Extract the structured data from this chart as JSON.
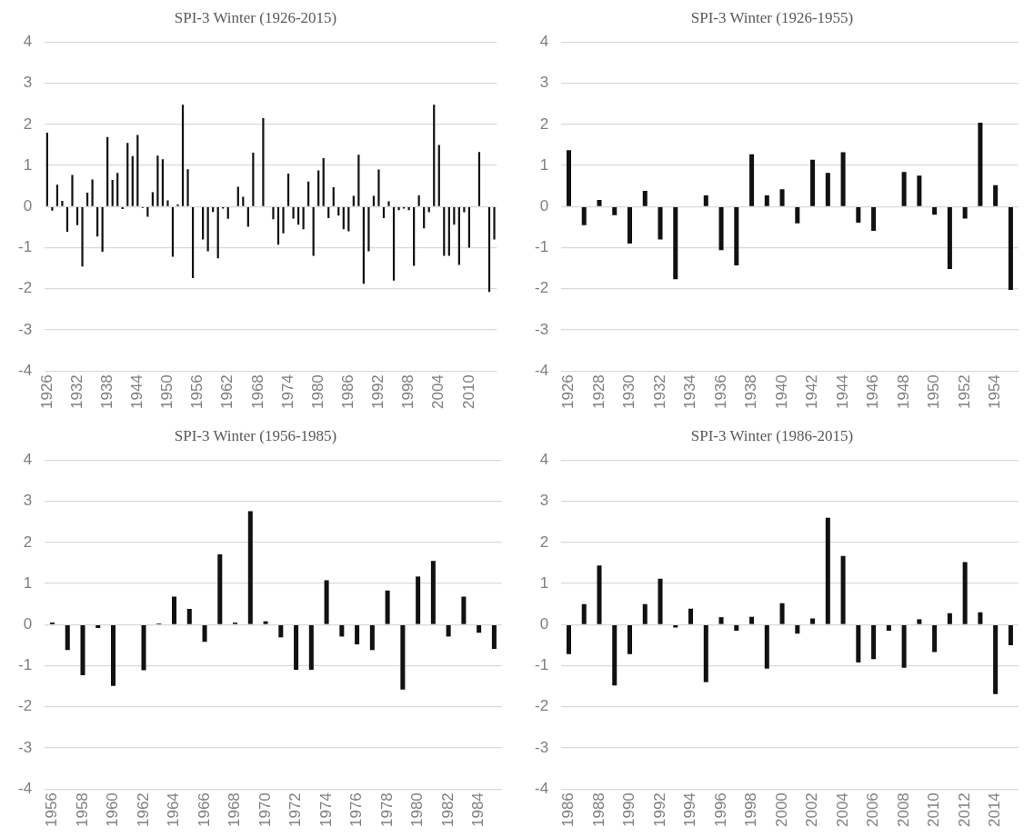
{
  "chart_data": [
    {
      "type": "bar",
      "title": "SPI-3 Winter (1926-2015)",
      "color": "#111111",
      "ylim": [
        -4,
        4
      ],
      "yticks": [
        -4,
        -3,
        -2,
        -1,
        0,
        1,
        2,
        3,
        4
      ],
      "grid": "y",
      "categories": [
        "1926",
        null,
        null,
        null,
        null,
        null,
        "1932",
        null,
        null,
        null,
        null,
        null,
        "1938",
        null,
        null,
        null,
        null,
        null,
        "1944",
        null,
        null,
        null,
        null,
        null,
        "1950",
        null,
        null,
        null,
        null,
        null,
        "1956",
        null,
        null,
        null,
        null,
        null,
        "1962",
        null,
        null,
        null,
        null,
        null,
        "1968",
        null,
        null,
        null,
        null,
        null,
        "1974",
        null,
        null,
        null,
        null,
        null,
        "1980",
        null,
        null,
        null,
        null,
        null,
        "1986",
        null,
        null,
        null,
        null,
        null,
        "1992",
        null,
        null,
        null,
        null,
        null,
        "1998",
        null,
        null,
        null,
        null,
        null,
        "2004",
        null,
        null,
        null,
        null,
        null,
        "2010",
        null,
        null,
        null,
        null,
        null
      ],
      "values": [
        1.8,
        -0.1,
        0.53,
        0.14,
        -0.61,
        0.77,
        -0.45,
        -1.46,
        0.34,
        0.66,
        -0.73,
        -1.1,
        1.69,
        0.65,
        0.82,
        -0.06,
        1.55,
        1.23,
        1.74,
        -0.03,
        -0.25,
        0.35,
        1.24,
        1.15,
        0.15,
        -1.22,
        0.05,
        2.48,
        0.91,
        -1.74,
        null,
        -0.8,
        -1.09,
        -0.13,
        -1.26,
        -0.05,
        -0.3,
        null,
        0.48,
        0.24,
        -0.49,
        1.31,
        null,
        2.15,
        null,
        -0.31,
        -0.93,
        -0.65,
        0.8,
        -0.29,
        -0.44,
        -0.55,
        0.61,
        -1.2,
        0.88,
        1.18,
        -0.28,
        0.47,
        -0.22,
        -0.55,
        -0.6,
        0.26,
        1.26,
        -1.88,
        -1.09,
        0.26,
        0.9,
        -0.28,
        0.13,
        -1.8,
        -0.09,
        -0.05,
        -0.09,
        -1.44,
        0.27,
        -0.53,
        -0.14,
        2.48,
        1.5,
        -1.2,
        -1.2,
        -0.44,
        -1.42,
        -0.14,
        -1.0,
        null,
        1.33,
        null,
        -2.08,
        -0.8
      ]
    },
    {
      "type": "bar",
      "title": "SPI-3 Winter (1926-1955)",
      "color": "#111111",
      "ylim": [
        -4,
        4
      ],
      "yticks": [
        -4,
        -3,
        -2,
        -1,
        0,
        1,
        2,
        3,
        4
      ],
      "grid": "y",
      "categories": [
        "1926",
        null,
        "1928",
        null,
        "1930",
        null,
        "1932",
        null,
        "1934",
        null,
        "1936",
        null,
        "1938",
        null,
        "1940",
        null,
        "1942",
        null,
        "1944",
        null,
        "1946",
        null,
        "1948",
        null,
        "1950",
        null,
        "1952",
        null,
        "1954",
        null
      ],
      "values": [
        1.37,
        -0.45,
        0.16,
        -0.21,
        -0.9,
        0.38,
        -0.8,
        -1.77,
        0,
        0.27,
        -1.06,
        -1.43,
        1.27,
        0.27,
        0.42,
        -0.41,
        1.14,
        0.82,
        1.32,
        -0.39,
        -0.59,
        0,
        0.84,
        0.75,
        -0.2,
        -1.52,
        -0.29,
        2.04,
        0.52,
        -2.03
      ]
    },
    {
      "type": "bar",
      "title": "SPI-3 Winter (1956-1985)",
      "color": "#111111",
      "ylim": [
        -4,
        4
      ],
      "yticks": [
        -4,
        -3,
        -2,
        -1,
        0,
        1,
        2,
        3,
        4
      ],
      "grid": "y",
      "categories": [
        "1956",
        null,
        "1958",
        null,
        "1960",
        null,
        "1962",
        null,
        "1964",
        null,
        "1966",
        null,
        "1968",
        null,
        "1970",
        null,
        "1972",
        null,
        "1974",
        null,
        "1976",
        null,
        "1978",
        null,
        "1980",
        null,
        "1982",
        null,
        "1984",
        null
      ],
      "values": [
        0.05,
        -0.62,
        -1.23,
        -0.08,
        -1.49,
        null,
        -1.11,
        0.03,
        0.68,
        0.38,
        -0.42,
        1.71,
        0.05,
        2.76,
        0.08,
        -0.31,
        -1.1,
        -1.1,
        1.08,
        -0.29,
        -0.48,
        -0.62,
        0.83,
        -1.58,
        1.17,
        1.55,
        -0.29,
        0.68,
        -0.2,
        -0.59
      ]
    },
    {
      "type": "bar",
      "title": "SPI-3 Winter (1986-2015)",
      "color": "#111111",
      "ylim": [
        -4,
        4
      ],
      "yticks": [
        -4,
        -3,
        -2,
        -1,
        0,
        1,
        2,
        3,
        4
      ],
      "grid": "y",
      "categories": [
        "1986",
        null,
        "1988",
        null,
        "1990",
        null,
        "1992",
        null,
        "1994",
        null,
        "1996",
        null,
        "1998",
        null,
        "2000",
        null,
        "2002",
        null,
        "2004",
        null,
        "2006",
        null,
        "2008",
        null,
        "2010",
        null,
        "2012",
        null,
        "2014",
        null
      ],
      "values": [
        -0.72,
        0.5,
        1.44,
        -1.48,
        -0.72,
        0.5,
        1.12,
        -0.07,
        0.39,
        -1.4,
        0.18,
        -0.15,
        0.19,
        -1.07,
        0.52,
        -0.22,
        0.15,
        2.6,
        1.67,
        -0.92,
        -0.84,
        -0.15,
        -1.05,
        0.13,
        -0.67,
        0.28,
        1.52,
        0.3,
        -1.69,
        -0.5
      ]
    }
  ]
}
